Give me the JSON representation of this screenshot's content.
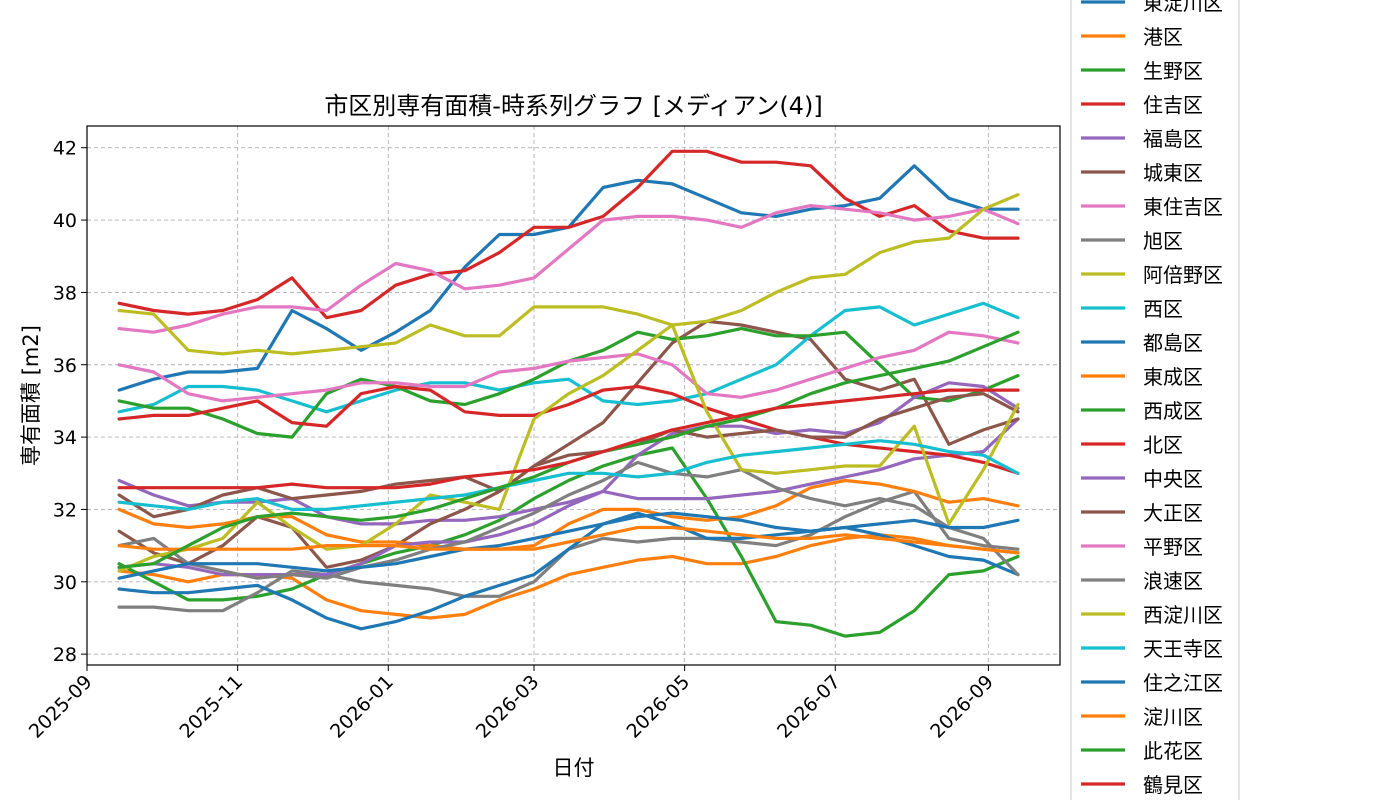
{
  "chart_data": {
    "type": "line",
    "title": "市区別専有面積-時系列グラフ [メディアン(4)]",
    "xlabel": "日付",
    "ylabel": "専有面積 [m2]",
    "ylim": [
      27.7,
      42.6
    ],
    "xlim": [
      "2025-09-01",
      "2026-09-30"
    ],
    "yticks": [
      28,
      30,
      32,
      34,
      36,
      38,
      40,
      42
    ],
    "xticks": [
      "2025-09",
      "2025-11",
      "2026-01",
      "2026-03",
      "2026-05",
      "2026-07",
      "2026-09"
    ],
    "grid": true,
    "legend_position": "right",
    "dates": [
      "2025-09-14",
      "2025-09-28",
      "2025-10-12",
      "2025-10-26",
      "2025-11-09",
      "2025-11-23",
      "2025-12-07",
      "2025-12-21",
      "2026-01-04",
      "2026-01-18",
      "2026-02-01",
      "2026-02-15",
      "2026-03-01",
      "2026-03-15",
      "2026-03-29",
      "2026-04-12",
      "2026-04-26",
      "2026-05-10",
      "2026-05-24",
      "2026-06-07",
      "2026-06-21",
      "2026-07-05",
      "2026-07-19",
      "2026-08-02",
      "2026-08-16",
      "2026-08-30",
      "2026-09-13"
    ],
    "series": [
      {
        "name": "東淀川区",
        "color": "#1f77b4",
        "values": [
          35.3,
          35.6,
          35.8,
          35.8,
          35.9,
          37.5,
          37.0,
          36.4,
          36.9,
          37.5,
          38.7,
          39.6,
          39.6,
          39.8,
          40.9,
          41.1,
          41.0,
          40.6,
          40.2,
          40.1,
          40.3,
          40.4,
          40.6,
          41.5,
          40.6,
          40.3,
          40.3
        ]
      },
      {
        "name": "港区",
        "color": "#ff7f0e",
        "values": [
          30.3,
          30.2,
          30.0,
          30.2,
          30.2,
          30.1,
          29.5,
          29.2,
          29.1,
          29.0,
          29.1,
          29.5,
          29.8,
          30.2,
          30.4,
          30.6,
          30.7,
          30.5,
          30.5,
          30.7,
          31.0,
          31.2,
          31.3,
          31.2,
          31.0,
          30.9,
          30.8
        ]
      },
      {
        "name": "生野区",
        "color": "#2ca02c",
        "values": [
          30.5,
          30.0,
          29.5,
          29.5,
          29.6,
          29.8,
          30.2,
          30.5,
          30.8,
          31.0,
          31.3,
          31.7,
          32.3,
          32.8,
          33.2,
          33.5,
          33.7,
          32.3,
          30.7,
          28.9,
          28.8,
          28.5,
          28.6,
          29.2,
          30.2,
          30.3,
          30.7
        ]
      },
      {
        "name": "住吉区",
        "color": "#d62728",
        "values": [
          37.7,
          37.5,
          37.4,
          37.5,
          37.8,
          38.4,
          37.3,
          37.5,
          38.2,
          38.5,
          38.6,
          39.1,
          39.8,
          39.8,
          40.1,
          40.9,
          41.9,
          41.9,
          41.6,
          41.6,
          41.5,
          40.6,
          40.1,
          40.4,
          39.7,
          39.5,
          39.5
        ]
      },
      {
        "name": "福島区",
        "color": "#9467bd",
        "values": [
          32.8,
          32.4,
          32.1,
          32.2,
          32.2,
          32.3,
          31.8,
          31.6,
          31.6,
          31.7,
          31.7,
          31.8,
          32.0,
          32.2,
          32.5,
          32.3,
          32.3,
          32.3,
          32.4,
          32.5,
          32.7,
          32.9,
          33.1,
          33.4,
          33.5,
          33.6,
          34.5
        ]
      },
      {
        "name": "城東区",
        "color": "#8c564b",
        "values": [
          31.4,
          30.8,
          30.5,
          31.0,
          31.8,
          31.5,
          30.4,
          30.6,
          31.0,
          31.6,
          32.0,
          32.5,
          33.2,
          33.8,
          34.4,
          35.5,
          36.6,
          37.2,
          37.1,
          36.9,
          36.7,
          35.6,
          35.3,
          35.6,
          33.8,
          34.2,
          34.5
        ]
      },
      {
        "name": "東住吉区",
        "color": "#e377c2",
        "values": [
          37.0,
          36.9,
          37.1,
          37.4,
          37.6,
          37.6,
          37.5,
          38.2,
          38.8,
          38.6,
          38.1,
          38.2,
          38.4,
          39.2,
          40.0,
          40.1,
          40.1,
          40.0,
          39.8,
          40.2,
          40.4,
          40.3,
          40.2,
          40.0,
          40.1,
          40.3,
          39.9
        ]
      },
      {
        "name": "旭区",
        "color": "#7f7f7f",
        "values": [
          29.3,
          29.3,
          29.2,
          29.2,
          29.7,
          30.3,
          30.2,
          30.0,
          29.9,
          29.8,
          29.6,
          29.6,
          30.0,
          30.9,
          31.2,
          31.1,
          31.2,
          31.2,
          31.1,
          31.0,
          31.3,
          31.8,
          32.2,
          32.5,
          31.2,
          31.0,
          30.9
        ]
      },
      {
        "name": "阿倍野区",
        "color": "#bcbd22",
        "values": [
          37.5,
          37.4,
          36.4,
          36.3,
          36.4,
          36.3,
          36.4,
          36.5,
          36.6,
          37.1,
          36.8,
          36.8,
          37.6,
          37.6,
          37.6,
          37.4,
          37.1,
          37.2,
          37.5,
          38.0,
          38.4,
          38.5,
          39.1,
          39.4,
          39.5,
          40.3,
          40.7
        ]
      },
      {
        "name": "西区",
        "color": "#17becf",
        "values": [
          34.7,
          34.9,
          35.4,
          35.4,
          35.3,
          35.0,
          34.7,
          35.0,
          35.3,
          35.5,
          35.5,
          35.3,
          35.5,
          35.6,
          35.0,
          34.9,
          35.0,
          35.2,
          35.6,
          36.0,
          36.8,
          37.5,
          37.6,
          37.1,
          37.4,
          37.7,
          37.3
        ]
      },
      {
        "name": "都島区",
        "color": "#1f77b4",
        "values": [
          29.8,
          29.7,
          29.7,
          29.8,
          29.9,
          29.5,
          29.0,
          28.7,
          28.9,
          29.2,
          29.6,
          29.9,
          30.2,
          30.9,
          31.6,
          31.9,
          31.6,
          31.2,
          31.2,
          31.3,
          31.4,
          31.5,
          31.3,
          31.0,
          30.7,
          30.6,
          30.2
        ]
      },
      {
        "name": "東成区",
        "color": "#ff7f0e",
        "values": [
          32.0,
          31.6,
          31.5,
          31.6,
          31.8,
          31.8,
          31.3,
          31.1,
          31.1,
          31.0,
          30.9,
          30.9,
          31.0,
          31.6,
          32.0,
          32.0,
          31.8,
          31.7,
          31.8,
          32.1,
          32.6,
          32.8,
          32.7,
          32.5,
          32.2,
          32.3,
          32.1
        ]
      },
      {
        "name": "西成区",
        "color": "#2ca02c",
        "values": [
          35.0,
          34.8,
          34.8,
          34.5,
          34.1,
          34.0,
          35.2,
          35.6,
          35.4,
          35.0,
          34.9,
          35.2,
          35.6,
          36.1,
          36.4,
          36.9,
          36.7,
          36.8,
          37.0,
          36.8,
          36.8,
          36.9,
          36.0,
          35.1,
          35.0,
          35.3,
          35.7
        ]
      },
      {
        "name": "北区",
        "color": "#d62728",
        "values": [
          34.5,
          34.6,
          34.6,
          34.8,
          35.0,
          34.4,
          34.3,
          35.2,
          35.4,
          35.3,
          34.7,
          34.6,
          34.6,
          34.9,
          35.3,
          35.4,
          35.2,
          34.8,
          34.5,
          34.2,
          34.0,
          33.8,
          33.7,
          33.6,
          33.5,
          33.3,
          33.0
        ]
      },
      {
        "name": "中央区",
        "color": "#9467bd",
        "values": [
          30.4,
          30.5,
          30.4,
          30.2,
          30.2,
          30.2,
          30.2,
          30.5,
          31.0,
          31.1,
          31.1,
          31.3,
          31.6,
          32.1,
          32.5,
          33.5,
          34.1,
          34.3,
          34.3,
          34.1,
          34.2,
          34.1,
          34.4,
          35.1,
          35.5,
          35.4,
          34.8
        ]
      },
      {
        "name": "大正区",
        "color": "#8c564b",
        "values": [
          32.4,
          31.8,
          32.0,
          32.4,
          32.6,
          32.3,
          32.4,
          32.5,
          32.7,
          32.8,
          32.9,
          32.5,
          33.2,
          33.5,
          33.6,
          33.8,
          34.2,
          34.0,
          34.1,
          34.2,
          34.0,
          34.0,
          34.5,
          34.8,
          35.1,
          35.2,
          34.7
        ]
      },
      {
        "name": "平野区",
        "color": "#e377c2",
        "values": [
          36.0,
          35.8,
          35.2,
          35.0,
          35.1,
          35.2,
          35.3,
          35.5,
          35.5,
          35.4,
          35.4,
          35.8,
          35.9,
          36.1,
          36.2,
          36.3,
          36.0,
          35.2,
          35.1,
          35.3,
          35.6,
          35.9,
          36.2,
          36.4,
          36.9,
          36.8,
          36.6
        ]
      },
      {
        "name": "浪速区",
        "color": "#7f7f7f",
        "values": [
          31.0,
          31.2,
          30.5,
          30.3,
          30.1,
          30.2,
          30.1,
          30.4,
          30.6,
          30.9,
          31.1,
          31.5,
          31.9,
          32.4,
          32.8,
          33.3,
          33.0,
          32.9,
          33.1,
          32.6,
          32.3,
          32.1,
          32.3,
          32.1,
          31.5,
          31.2,
          30.2
        ]
      },
      {
        "name": "西淀川区",
        "color": "#bcbd22",
        "values": [
          30.3,
          30.7,
          30.9,
          31.2,
          32.2,
          31.5,
          30.9,
          31.0,
          31.6,
          32.4,
          32.2,
          32.0,
          34.5,
          35.2,
          35.7,
          36.4,
          37.1,
          34.7,
          33.1,
          33.0,
          33.1,
          33.2,
          33.2,
          34.3,
          31.6,
          33.1,
          34.9
        ]
      },
      {
        "name": "天王寺区",
        "color": "#17becf",
        "values": [
          32.2,
          32.1,
          32.0,
          32.2,
          32.3,
          32.0,
          32.0,
          32.1,
          32.2,
          32.3,
          32.4,
          32.6,
          32.8,
          33.0,
          33.0,
          32.9,
          33.0,
          33.3,
          33.5,
          33.6,
          33.7,
          33.8,
          33.9,
          33.8,
          33.6,
          33.5,
          33.0
        ]
      },
      {
        "name": "住之江区",
        "color": "#1f77b4",
        "values": [
          30.1,
          30.3,
          30.5,
          30.5,
          30.5,
          30.4,
          30.3,
          30.4,
          30.5,
          30.7,
          30.9,
          31.0,
          31.2,
          31.4,
          31.6,
          31.8,
          31.9,
          31.8,
          31.7,
          31.5,
          31.4,
          31.5,
          31.6,
          31.7,
          31.5,
          31.5,
          31.7
        ]
      },
      {
        "name": "淀川区",
        "color": "#ff7f0e",
        "values": [
          31.0,
          30.9,
          30.9,
          30.9,
          30.9,
          30.9,
          31.0,
          31.0,
          31.0,
          30.9,
          30.9,
          30.9,
          30.9,
          31.1,
          31.3,
          31.5,
          31.5,
          31.4,
          31.3,
          31.2,
          31.2,
          31.3,
          31.2,
          31.1,
          31.0,
          30.9,
          30.8
        ]
      },
      {
        "name": "此花区",
        "color": "#2ca02c",
        "values": [
          30.4,
          30.5,
          31.0,
          31.5,
          31.8,
          31.9,
          31.8,
          31.7,
          31.8,
          32.0,
          32.3,
          32.6,
          32.9,
          33.3,
          33.6,
          33.8,
          34.0,
          34.3,
          34.5,
          34.8,
          35.2,
          35.5,
          35.7,
          35.9,
          36.1,
          36.5,
          36.9
        ]
      },
      {
        "name": "鶴見区",
        "color": "#d62728",
        "values": [
          32.6,
          32.6,
          32.6,
          32.6,
          32.6,
          32.7,
          32.6,
          32.6,
          32.6,
          32.7,
          32.9,
          33.0,
          33.1,
          33.3,
          33.6,
          33.9,
          34.2,
          34.4,
          34.6,
          34.8,
          34.9,
          35.0,
          35.1,
          35.2,
          35.3,
          35.3,
          35.3
        ]
      }
    ]
  }
}
